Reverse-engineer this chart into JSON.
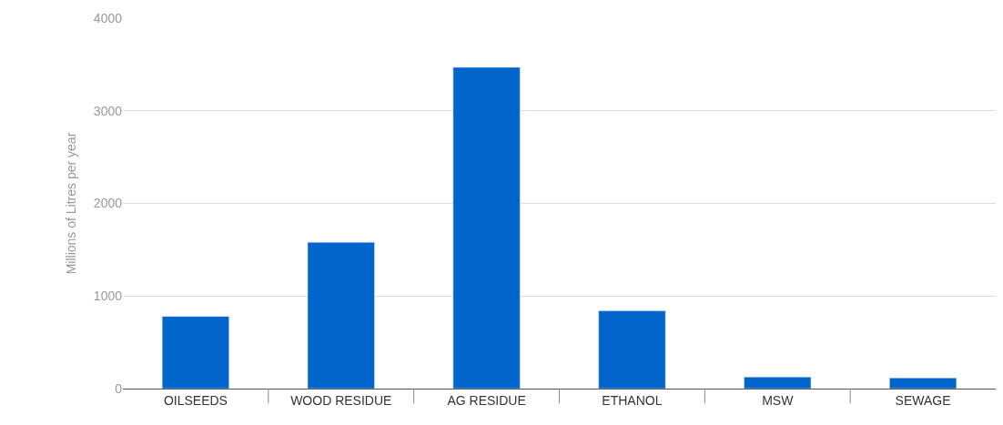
{
  "chart_data": {
    "type": "bar",
    "ylabel": "Millions of Litres per year",
    "categories": [
      "OILSEEDS",
      "WOOD RESIDUE",
      "AG RESIDUE",
      "ETHANOL",
      "MSW",
      "SEWAGE"
    ],
    "values": [
      780,
      1580,
      3470,
      840,
      125,
      115
    ],
    "color": "#0066cc",
    "ylim": [
      0,
      4000
    ],
    "yticks": [
      0,
      1000,
      2000,
      3000,
      4000
    ],
    "grid": "y",
    "legend": false
  }
}
